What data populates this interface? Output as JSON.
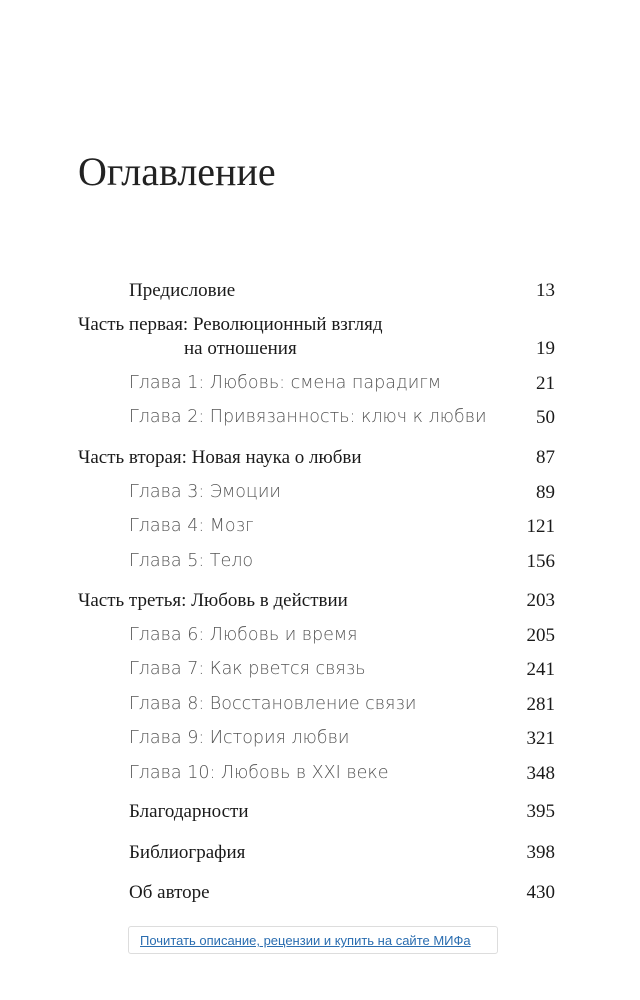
{
  "title": "Оглавление",
  "entries": [
    {
      "label": "Предисловие",
      "page": 13
    },
    {
      "lines": [
        "Часть первая: Революционный взгляд",
        "на отношения"
      ],
      "page": 19
    },
    {
      "label": "Глава 1: Любовь: смена парадигм",
      "page": 21
    },
    {
      "label": "Глава 2: Привязанность: ключ к любви",
      "page": 50
    },
    {
      "label": "Часть вторая: Новая наука о любви",
      "page": 87
    },
    {
      "label": "Глава 3: Эмоции",
      "page": 89
    },
    {
      "label": "Глава 4: Мозг",
      "page": 121
    },
    {
      "label": "Глава 5: Тело",
      "page": 156
    },
    {
      "label": "Часть третья: Любовь в действии",
      "page": 203
    },
    {
      "label": "Глава 6: Любовь и время",
      "page": 205
    },
    {
      "label": "Глава 7: Как рвется связь",
      "page": 241
    },
    {
      "label": "Глава 8: Восстановление связи",
      "page": 281
    },
    {
      "label": "Глава 9: История любви",
      "page": 321
    },
    {
      "label": "Глава 10: Любовь в XXI веке",
      "page": 348
    },
    {
      "label": "Благодарности",
      "page": 395
    },
    {
      "label": "Библиография",
      "page": 398
    },
    {
      "label": "Об авторе",
      "page": 430
    }
  ],
  "link": "Почитать описание, рецензии и купить на сайте МИФа"
}
